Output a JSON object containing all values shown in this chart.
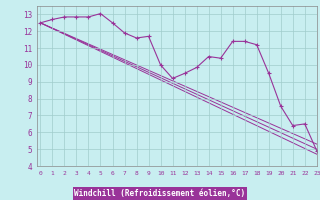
{
  "xlabel": "Windchill (Refroidissement éolien,°C)",
  "background_color": "#c8eef0",
  "grid_color": "#a0cccc",
  "line_color": "#993399",
  "hours": [
    0,
    1,
    2,
    3,
    4,
    5,
    6,
    7,
    8,
    9,
    10,
    11,
    12,
    13,
    14,
    15,
    16,
    17,
    18,
    19,
    20,
    21,
    22,
    23
  ],
  "windchill": [
    12.5,
    12.7,
    12.85,
    12.85,
    12.85,
    13.05,
    12.5,
    11.9,
    11.6,
    11.7,
    10.0,
    9.2,
    9.5,
    9.85,
    10.5,
    10.4,
    11.4,
    11.4,
    11.2,
    9.5,
    7.55,
    6.4,
    6.5,
    4.9
  ],
  "trend_lines": [
    {
      "x0": 0,
      "y0": 12.5,
      "x1": 23,
      "y1": 4.7
    },
    {
      "x0": 0,
      "y0": 12.5,
      "x1": 23,
      "y1": 5.0
    },
    {
      "x0": 0,
      "y0": 12.5,
      "x1": 23,
      "y1": 5.3
    }
  ],
  "ylim": [
    4,
    13.5
  ],
  "xlim": [
    -0.3,
    23
  ],
  "yticks": [
    4,
    5,
    6,
    7,
    8,
    9,
    10,
    11,
    12,
    13
  ],
  "xticks": [
    0,
    1,
    2,
    3,
    4,
    5,
    6,
    7,
    8,
    9,
    10,
    11,
    12,
    13,
    14,
    15,
    16,
    17,
    18,
    19,
    20,
    21,
    22,
    23
  ],
  "xlabel_bg": "#993399",
  "xlabel_fg": "#ffffff"
}
